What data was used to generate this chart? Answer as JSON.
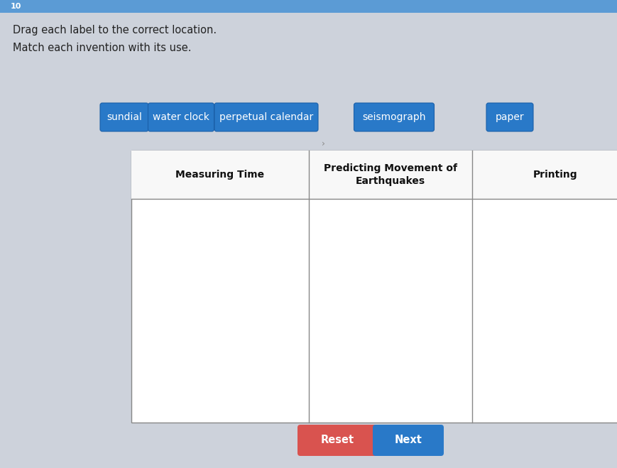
{
  "title_line1": "Drag each label to the correct location.",
  "title_line2": "Match each invention with its use.",
  "page_background": "#cdd2db",
  "top_bar_color": "#5b9bd5",
  "top_bar_text": "10",
  "labels": [
    "sundial",
    "water clock",
    "perpetual calendar",
    "seismograph",
    "paper"
  ],
  "label_bg_color": "#2979c8",
  "label_text_color": "#ffffff",
  "table_headers": [
    "Measuring Time",
    "Predicting Movement of\nEarthquakes",
    "Printing"
  ],
  "reset_btn_color": "#d9534f",
  "next_btn_color": "#2979c8",
  "reset_text": "Reset",
  "next_text": "Next",
  "title_fontsize": 10.5,
  "label_fontsize": 10,
  "header_fontsize": 10,
  "btn_fontsize": 10.5
}
